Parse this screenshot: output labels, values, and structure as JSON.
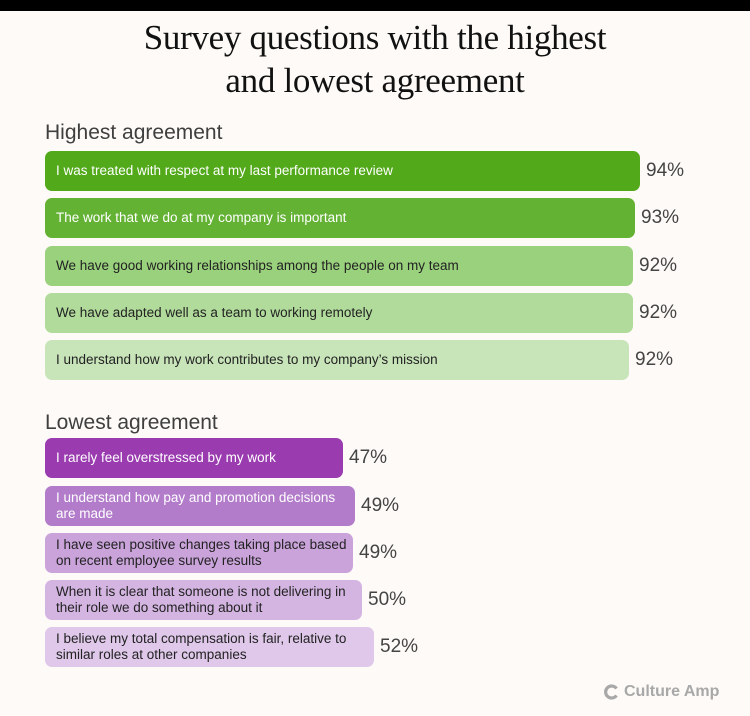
{
  "title_line1": "Survey questions with the highest",
  "title_line2": "and lowest agreement",
  "high_heading": "Highest agreement",
  "low_heading": "Lowest agreement",
  "logo_text": "Culture Amp",
  "high": [
    {
      "label": "I was treated with respect at my last performance review",
      "pct": "94%",
      "color": "#52a91a",
      "text": "#ffffff"
    },
    {
      "label": "The work that we do at my company is important",
      "pct": "93%",
      "color": "#63b234",
      "text": "#ffffff"
    },
    {
      "label": "We have good working relationships among the people on my team",
      "pct": "92%",
      "color": "#9ad17d",
      "text": "#222222"
    },
    {
      "label": "We have adapted well as a team to working remotely",
      "pct": "92%",
      "color": "#b1db9b",
      "text": "#222222"
    },
    {
      "label": "I understand how my work contributes to my company’s mission",
      "pct": "92%",
      "color": "#c8e4b9",
      "text": "#222222"
    }
  ],
  "low": [
    {
      "label": "I rarely feel overstressed by my work",
      "pct": "47%",
      "color": "#9a3bb0",
      "text": "#ffffff"
    },
    {
      "label": "I understand how pay and promotion decisions are made",
      "pct": "49%",
      "color": "#b27ccb",
      "text": "#ffffff"
    },
    {
      "label": "I have seen positive changes taking place based on recent employee survey results",
      "pct": "49%",
      "color": "#c9a3da",
      "text": "#222222"
    },
    {
      "label": "When it is clear that someone is not delivering in their role we do something about it",
      "pct": "50%",
      "color": "#d4b5e2",
      "text": "#222222"
    },
    {
      "label": "I believe my total compensation is fair, relative to similar roles at other companies",
      "pct": "52%",
      "color": "#dfc8ea",
      "text": "#222222"
    }
  ],
  "chart_data": {
    "type": "bar",
    "orientation": "horizontal",
    "title": "Survey questions with the highest and lowest agreement",
    "series": [
      {
        "name": "Highest agreement",
        "categories": [
          "I was treated with respect at my last performance review",
          "The work that we do at my company is important",
          "We have good working relationships among the people on my team",
          "We have adapted well as a team to working remotely",
          "I understand how my work contributes to my company’s mission"
        ],
        "values": [
          94,
          93,
          92,
          92,
          92
        ]
      },
      {
        "name": "Lowest agreement",
        "categories": [
          "I rarely feel overstressed by my work",
          "I understand how pay and promotion decisions are made",
          "I have seen positive changes taking place based on recent employee survey results",
          "When it is clear that someone is not delivering in their role we do something about it",
          "I believe my total compensation is fair, relative to similar roles at other companies"
        ],
        "values": [
          47,
          49,
          49,
          50,
          52
        ]
      }
    ],
    "unit": "%"
  }
}
